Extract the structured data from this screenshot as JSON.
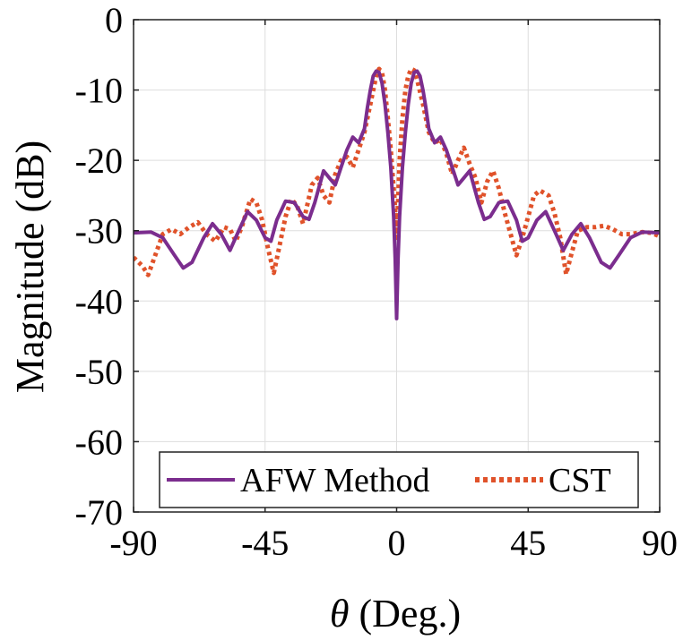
{
  "chart_data": {
    "type": "line",
    "xlabel_symbol": "θ",
    "xlabel_rest": " (Deg.)",
    "ylabel": "Magnitude (dB)",
    "xlim": [
      -90,
      90
    ],
    "ylim": [
      -70,
      0
    ],
    "xticks": [
      -90,
      -45,
      0,
      45,
      90
    ],
    "yticks": [
      0,
      -10,
      -20,
      -30,
      -40,
      -50,
      -60,
      -70
    ],
    "xtick_labels": [
      "-90",
      "-45",
      "0",
      "45",
      "90"
    ],
    "ytick_labels": [
      "0",
      "-10",
      "-20",
      "-30",
      "-40",
      "-50",
      "-60",
      "-70"
    ],
    "grid": true,
    "legend_position": "bottom",
    "series": [
      {
        "name": "AFW Method",
        "color": "#7B2D8E",
        "style": "solid",
        "points": [
          [
            -90,
            -30.3
          ],
          [
            -84,
            -30.2
          ],
          [
            -80,
            -31.0
          ],
          [
            -76,
            -33.5
          ],
          [
            -73,
            -35.3
          ],
          [
            -70,
            -34.5
          ],
          [
            -66,
            -31.0
          ],
          [
            -63,
            -29.0
          ],
          [
            -60,
            -30.5
          ],
          [
            -57,
            -32.8
          ],
          [
            -54,
            -30.0
          ],
          [
            -51,
            -27.3
          ],
          [
            -48,
            -28.5
          ],
          [
            -45,
            -31.0
          ],
          [
            -43,
            -31.5
          ],
          [
            -41,
            -28.5
          ],
          [
            -38,
            -25.8
          ],
          [
            -35,
            -26.0
          ],
          [
            -32,
            -28.0
          ],
          [
            -30,
            -28.4
          ],
          [
            -28,
            -26.0
          ],
          [
            -25,
            -21.5
          ],
          [
            -23,
            -22.5
          ],
          [
            -21,
            -23.5
          ],
          [
            -19,
            -21.0
          ],
          [
            -17,
            -18.5
          ],
          [
            -15,
            -16.7
          ],
          [
            -13,
            -17.5
          ],
          [
            -11,
            -15.5
          ],
          [
            -10,
            -12.5
          ],
          [
            -9,
            -10.0
          ],
          [
            -8,
            -8.0
          ],
          [
            -7,
            -7.3
          ],
          [
            -6,
            -7.5
          ],
          [
            -5,
            -9.0
          ],
          [
            -4,
            -12.0
          ],
          [
            -3,
            -16.0
          ],
          [
            -2,
            -21.0
          ],
          [
            -1,
            -28.0
          ],
          [
            -0.5,
            -34.0
          ],
          [
            0,
            -42.5
          ],
          [
            0.5,
            -34.0
          ],
          [
            1,
            -28.0
          ],
          [
            2,
            -21.0
          ],
          [
            3,
            -16.0
          ],
          [
            4,
            -12.0
          ],
          [
            5,
            -9.0
          ],
          [
            6,
            -7.5
          ],
          [
            7,
            -7.3
          ],
          [
            8,
            -8.0
          ],
          [
            9,
            -10.0
          ],
          [
            10,
            -12.5
          ],
          [
            11,
            -15.5
          ],
          [
            13,
            -17.5
          ],
          [
            15,
            -16.7
          ],
          [
            17,
            -18.5
          ],
          [
            19,
            -21.0
          ],
          [
            21,
            -23.5
          ],
          [
            23,
            -22.5
          ],
          [
            25,
            -21.5
          ],
          [
            28,
            -26.0
          ],
          [
            30,
            -28.4
          ],
          [
            32,
            -28.0
          ],
          [
            35,
            -26.0
          ],
          [
            38,
            -25.8
          ],
          [
            41,
            -28.5
          ],
          [
            43,
            -31.5
          ],
          [
            45,
            -31.0
          ],
          [
            48,
            -28.5
          ],
          [
            51,
            -27.3
          ],
          [
            54,
            -30.0
          ],
          [
            57,
            -32.8
          ],
          [
            60,
            -30.5
          ],
          [
            63,
            -29.0
          ],
          [
            66,
            -31.0
          ],
          [
            70,
            -34.5
          ],
          [
            73,
            -35.3
          ],
          [
            76,
            -33.5
          ],
          [
            80,
            -31.0
          ],
          [
            84,
            -30.2
          ],
          [
            90,
            -30.3
          ]
        ]
      },
      {
        "name": "CST",
        "color": "#E0522A",
        "style": "dotted",
        "points": [
          [
            -90,
            -33.8
          ],
          [
            -87,
            -35.0
          ],
          [
            -85,
            -36.3
          ],
          [
            -83,
            -34.0
          ],
          [
            -80,
            -30.5
          ],
          [
            -77,
            -29.8
          ],
          [
            -74,
            -30.5
          ],
          [
            -71,
            -29.5
          ],
          [
            -68,
            -28.8
          ],
          [
            -65,
            -30.5
          ],
          [
            -62,
            -31.5
          ],
          [
            -59,
            -29.5
          ],
          [
            -57,
            -29.8
          ],
          [
            -55,
            -31.5
          ],
          [
            -53,
            -29.5
          ],
          [
            -50,
            -25.5
          ],
          [
            -48,
            -26.0
          ],
          [
            -46,
            -28.5
          ],
          [
            -44,
            -32.5
          ],
          [
            -42,
            -36.0
          ],
          [
            -40,
            -32.0
          ],
          [
            -38,
            -28.0
          ],
          [
            -36,
            -25.5
          ],
          [
            -34,
            -26.5
          ],
          [
            -32,
            -29.0
          ],
          [
            -29,
            -23.5
          ],
          [
            -27,
            -22.5
          ],
          [
            -25,
            -25.0
          ],
          [
            -23,
            -26.0
          ],
          [
            -21,
            -22.0
          ],
          [
            -19,
            -20.0
          ],
          [
            -17,
            -19.5
          ],
          [
            -15,
            -21.0
          ],
          [
            -13,
            -18.5
          ],
          [
            -11,
            -16.0
          ],
          [
            -9,
            -12.0
          ],
          [
            -7,
            -8.0
          ],
          [
            -6,
            -7.0
          ],
          [
            -5,
            -7.5
          ],
          [
            -4,
            -10.0
          ],
          [
            -3,
            -14.0
          ],
          [
            -2,
            -18.5
          ],
          [
            -1,
            -24.0
          ],
          [
            -0.5,
            -27.0
          ],
          [
            0,
            -31.0
          ],
          [
            0.5,
            -26.0
          ],
          [
            1,
            -20.0
          ],
          [
            2,
            -14.0
          ],
          [
            3,
            -10.0
          ],
          [
            4,
            -8.0
          ],
          [
            5,
            -7.0
          ],
          [
            6,
            -7.2
          ],
          [
            7,
            -8.5
          ],
          [
            9,
            -12.0
          ],
          [
            11,
            -16.0
          ],
          [
            13,
            -17.5
          ],
          [
            15,
            -17.0
          ],
          [
            17,
            -19.0
          ],
          [
            19,
            -22.0
          ],
          [
            21,
            -20.0
          ],
          [
            23,
            -18.2
          ],
          [
            25,
            -20.5
          ],
          [
            27,
            -22.5
          ],
          [
            29,
            -26.0
          ],
          [
            31,
            -23.0
          ],
          [
            33,
            -21.5
          ],
          [
            35,
            -24.0
          ],
          [
            37,
            -27.5
          ],
          [
            39,
            -30.5
          ],
          [
            41,
            -33.5
          ],
          [
            43,
            -31.0
          ],
          [
            45,
            -28.0
          ],
          [
            47,
            -25.0
          ],
          [
            49,
            -24.3
          ],
          [
            52,
            -25.0
          ],
          [
            54,
            -27.5
          ],
          [
            56,
            -31.0
          ],
          [
            58,
            -36.2
          ],
          [
            60,
            -33.0
          ],
          [
            62,
            -30.0
          ],
          [
            65,
            -29.5
          ],
          [
            68,
            -29.5
          ],
          [
            71,
            -29.3
          ],
          [
            74,
            -29.8
          ],
          [
            77,
            -30.5
          ],
          [
            80,
            -30.5
          ],
          [
            84,
            -30.2
          ],
          [
            87,
            -30.3
          ],
          [
            90,
            -30.8
          ]
        ]
      }
    ]
  }
}
